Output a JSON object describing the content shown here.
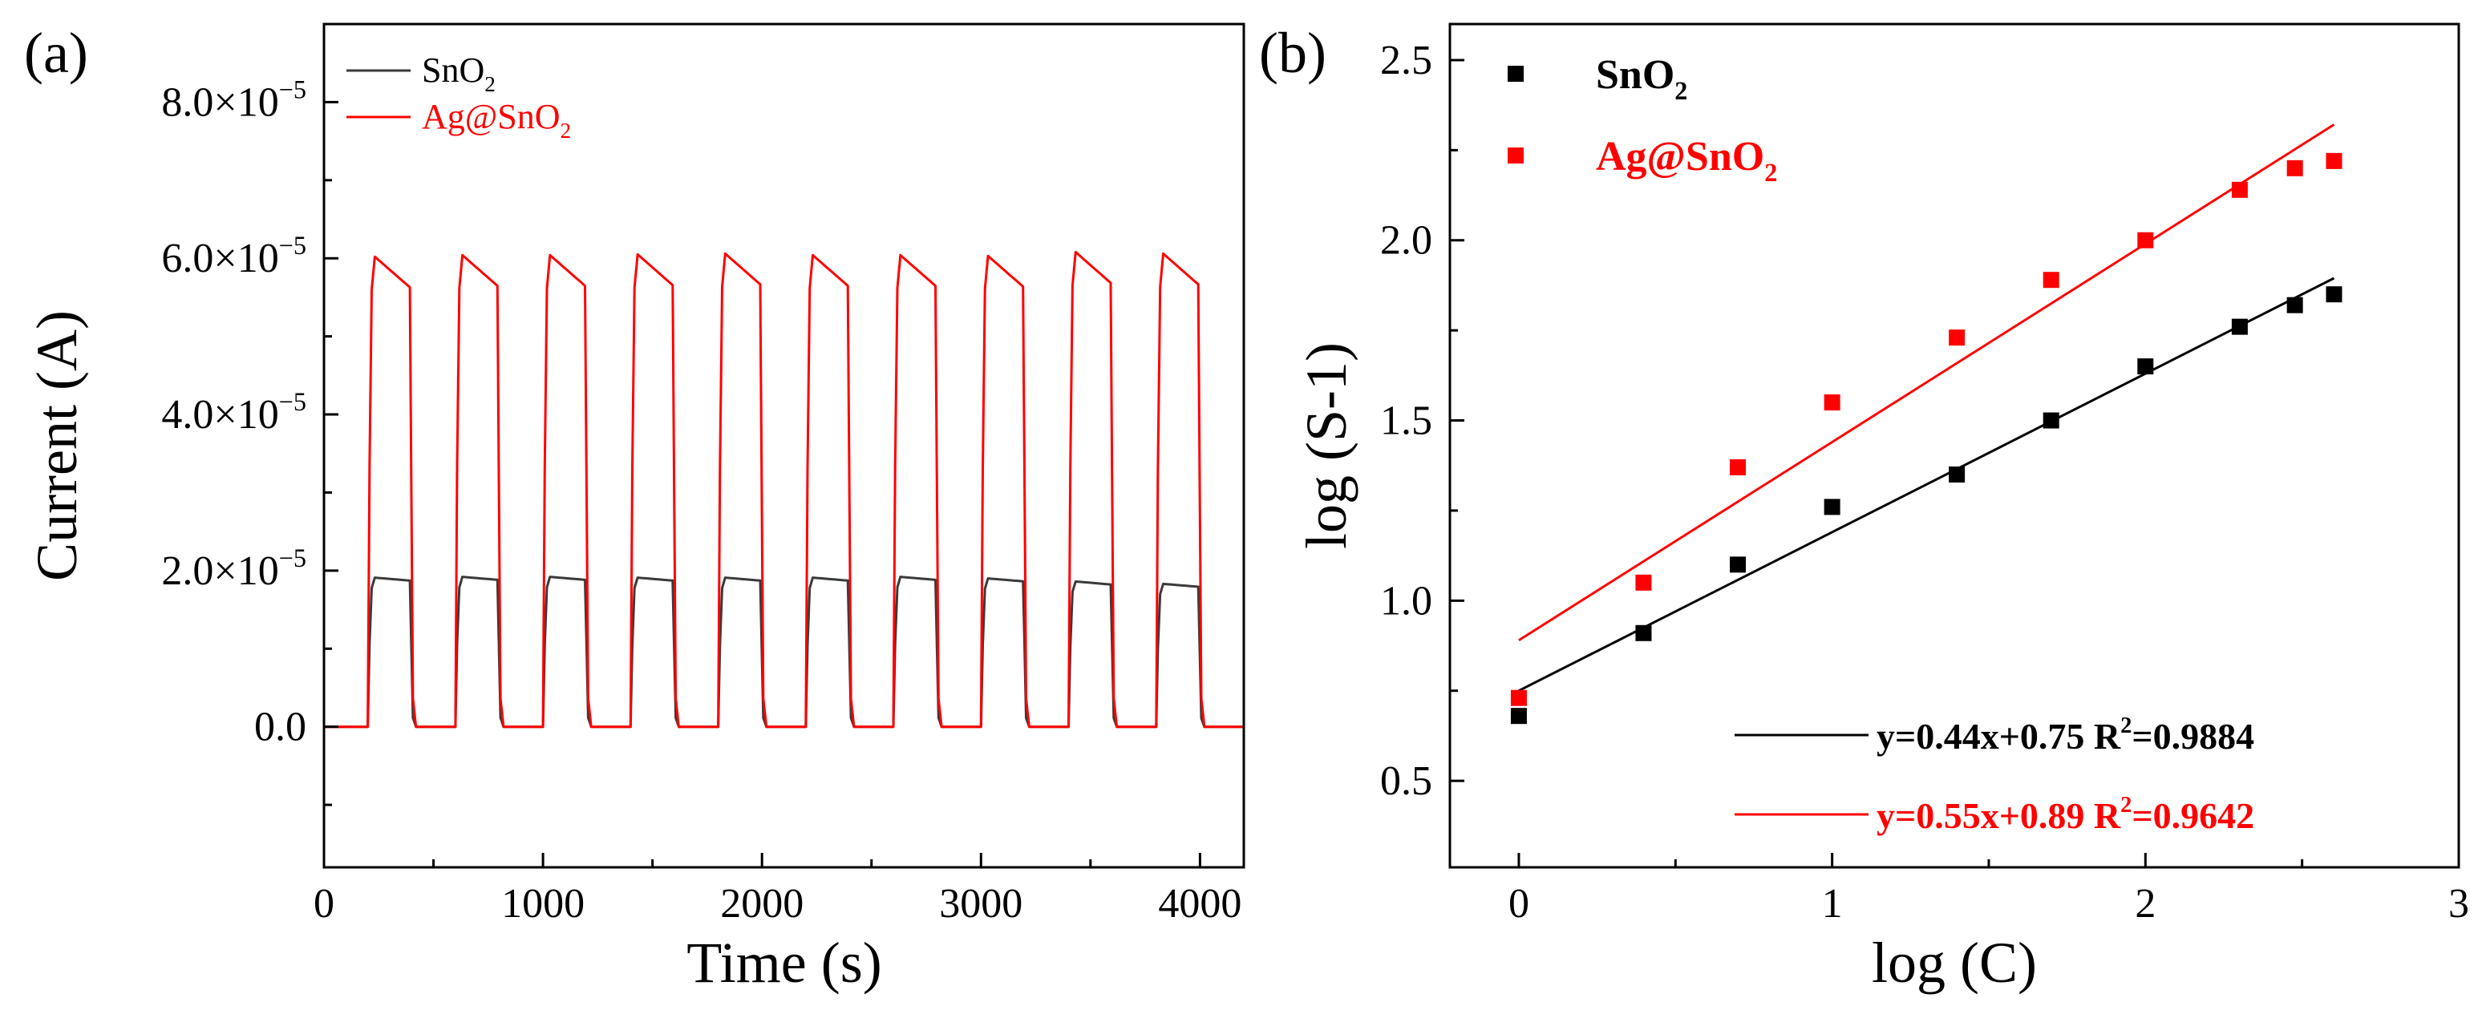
{
  "colors": {
    "snO2": "#000000",
    "snO2_line_a": "#3a3a3a",
    "ag_snO2": "#ff0000",
    "axis": "#000000"
  },
  "chart_data": [
    {
      "panel": "(a)",
      "type": "line",
      "title": "",
      "xlabel": "Time (s)",
      "ylabel": "Current (A)",
      "xlim": [
        0,
        4200
      ],
      "ylim": [
        -1.8e-05,
        9e-05
      ],
      "x_ticks": [
        0,
        1000,
        2000,
        3000,
        4000
      ],
      "x_tick_labels": [
        "0",
        "1000",
        "2000",
        "3000",
        "4000"
      ],
      "y_ticks": [
        0,
        2e-05,
        4e-05,
        6e-05,
        8e-05
      ],
      "y_tick_labels": [
        {
          "mant": "0.0",
          "exp": ""
        },
        {
          "mant": "2.0×10",
          "exp": "−5"
        },
        {
          "mant": "4.0×10",
          "exp": "−5"
        },
        {
          "mant": "6.0×10",
          "exp": "−5"
        },
        {
          "mant": "8.0×10",
          "exp": "−5"
        }
      ],
      "legend": {
        "position": "top-left",
        "entries": [
          {
            "prefix": "SnO",
            "sub": "2",
            "color_key": "snO2_line_a"
          },
          {
            "prefix": "Ag@SnO",
            "sub": "2",
            "color_key": "ag_snO2"
          }
        ]
      },
      "pulse": {
        "period": 400,
        "start": 200,
        "on_duration": 200
      },
      "series": [
        {
          "name": "SnO2",
          "baseline": 0.0,
          "peaks": [
            1.91e-05,
            1.92e-05,
            1.92e-05,
            1.91e-05,
            1.91e-05,
            1.91e-05,
            1.92e-05,
            1.9e-05,
            1.86e-05,
            1.83e-05
          ],
          "decay": 0.02
        },
        {
          "name": "Ag@SnO2",
          "baseline": 0.0,
          "peaks": [
            6.02e-05,
            6.04e-05,
            6.04e-05,
            6.05e-05,
            6.06e-05,
            6.04e-05,
            6.04e-05,
            6.03e-05,
            6.08e-05,
            6.06e-05
          ],
          "decay": 0.065
        }
      ]
    },
    {
      "panel": "(b)",
      "type": "scatter",
      "title": "",
      "xlabel": "log (C)",
      "ylabel": "log (S-1)",
      "xlim": [
        -0.22,
        3.0
      ],
      "ylim": [
        0.26,
        2.6
      ],
      "x_ticks": [
        0,
        1,
        2,
        3
      ],
      "x_tick_labels": [
        "0",
        "1",
        "2",
        "3"
      ],
      "y_ticks": [
        0.5,
        1.0,
        1.5,
        2.0,
        2.5
      ],
      "y_tick_labels": [
        "0.5",
        "1.0",
        "1.5",
        "2.0",
        "2.5"
      ],
      "legend": {
        "position": "top-left",
        "entries": [
          {
            "prefix": "SnO",
            "sub": "2",
            "color_key": "snO2"
          },
          {
            "prefix": "Ag@SnO",
            "sub": "2",
            "color_key": "ag_snO2"
          }
        ]
      },
      "series": [
        {
          "name": "SnO2",
          "x": [
            0,
            0.398,
            0.699,
            1.0,
            1.398,
            1.699,
            2.0,
            2.301,
            2.477,
            2.602
          ],
          "y": [
            0.68,
            0.91,
            1.1,
            1.26,
            1.35,
            1.5,
            1.65,
            1.76,
            1.82,
            1.85
          ],
          "fit": {
            "slope": 0.44,
            "intercept": 0.75,
            "x_range": [
              0,
              2.602
            ]
          }
        },
        {
          "name": "Ag@SnO2",
          "x": [
            0,
            0.398,
            0.699,
            1.0,
            1.398,
            1.699,
            2.0,
            2.301,
            2.477,
            2.602
          ],
          "y": [
            0.73,
            1.05,
            1.37,
            1.55,
            1.73,
            1.89,
            2.0,
            2.14,
            2.2,
            2.22
          ],
          "fit": {
            "slope": 0.55,
            "intercept": 0.89,
            "x_range": [
              0,
              2.602
            ]
          }
        }
      ],
      "fit_annotations": [
        {
          "eq": "y=0.44x+0.75 R",
          "sup": "2",
          "val": "=0.9884",
          "color_key": "snO2"
        },
        {
          "eq": "y=0.55x+0.89 R",
          "sup": "2",
          "val": "=0.9642",
          "color_key": "ag_snO2"
        }
      ]
    }
  ]
}
